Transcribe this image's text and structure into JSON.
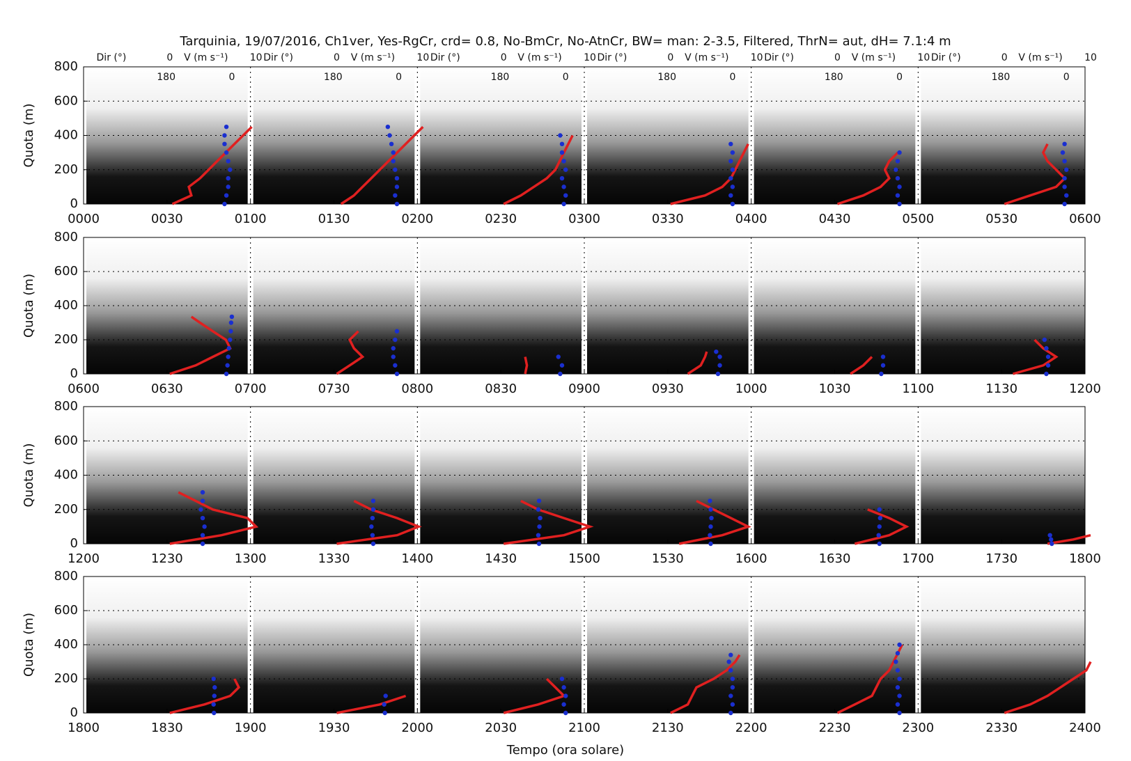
{
  "chart_data": {
    "type": "sodar-profile",
    "title": "Tarquinia, 19/07/2016, Ch1ver, Yes-RgCr, crd= 0.8, No-BmCr, No-AtnCr, BW= man: 2-3.5, Filtered, ThrN= aut,  dH= 7.1:4 m",
    "x_label": "Tempo (ora solare)",
    "profile_axes": {
      "dir_label": "Dir (°)",
      "speed_label": "V (m s⁻¹)",
      "speed_ticks": [
        0,
        10
      ],
      "dir_ticks": [
        180,
        0
      ],
      "speed_color": "#e02020",
      "dir_color": "#1a2fd0"
    },
    "panels": [
      {
        "y_label": "Quota (m)",
        "ylim": [
          0,
          800
        ],
        "yticks": [
          0,
          200,
          400,
          600,
          800
        ],
        "grid": true,
        "xlim": [
          0,
          360
        ],
        "xticks": [
          {
            "value": 0,
            "label": "0000"
          },
          {
            "value": 30,
            "label": "0030"
          },
          {
            "value": 60,
            "label": "0100"
          },
          {
            "value": 90,
            "label": "0130"
          },
          {
            "value": 120,
            "label": "0200"
          },
          {
            "value": 150,
            "label": "0230"
          },
          {
            "value": 180,
            "label": "0300"
          },
          {
            "value": 210,
            "label": "0330"
          },
          {
            "value": 240,
            "label": "0400"
          },
          {
            "value": 270,
            "label": "0430"
          },
          {
            "value": 300,
            "label": "0500"
          },
          {
            "value": 330,
            "label": "0530"
          },
          {
            "value": 360,
            "label": "0600"
          }
        ],
        "profiles": [
          {
            "time": 0,
            "heights": [
              0,
              50,
              100,
              150,
              200,
              250,
              300,
              350,
              400,
              450
            ],
            "speed": [
              0.3,
              2.5,
              2.2,
              3.5,
              4.5,
              5.5,
              6.5,
              7.5,
              8.5,
              9.5
            ],
            "dir": [
              20,
              15,
              10,
              10,
              5,
              10,
              15,
              20,
              20,
              15
            ]
          },
          {
            "time": 60,
            "heights": [
              0,
              50,
              100,
              150,
              200,
              250,
              300,
              350,
              400,
              450
            ],
            "speed": [
              0.5,
              2,
              3,
              4,
              5,
              6,
              7,
              8,
              9,
              10
            ],
            "dir": [
              5,
              10,
              5,
              5,
              10,
              15,
              15,
              20,
              25,
              30
            ]
          },
          {
            "time": 120,
            "heights": [
              0,
              50,
              100,
              150,
              200,
              250,
              300,
              350,
              400
            ],
            "speed": [
              0,
              2,
              3.5,
              5,
              6,
              6.5,
              7,
              7.5,
              8
            ],
            "dir": [
              5,
              0,
              5,
              10,
              0,
              5,
              10,
              10,
              15
            ]
          },
          {
            "time": 180,
            "heights": [
              0,
              50,
              100,
              150,
              200,
              250,
              300,
              350
            ],
            "speed": [
              0,
              4,
              6,
              7,
              7.5,
              8,
              8.5,
              9
            ],
            "dir": [
              0,
              5,
              0,
              5,
              0,
              5,
              0,
              5
            ]
          },
          {
            "time": 240,
            "heights": [
              0,
              50,
              100,
              150,
              200,
              250,
              300
            ],
            "speed": [
              0,
              3,
              5,
              6,
              5.5,
              6,
              7
            ],
            "dir": [
              0,
              5,
              0,
              5,
              10,
              5,
              0
            ]
          },
          {
            "time": 300,
            "heights": [
              0,
              50,
              100,
              150,
              200,
              250,
              300,
              350
            ],
            "speed": [
              0,
              3,
              6,
              7,
              6,
              5,
              4.5,
              5
            ],
            "dir": [
              5,
              0,
              5,
              5,
              0,
              5,
              10,
              5
            ]
          }
        ]
      },
      {
        "y_label": "Quota (m)",
        "ylim": [
          0,
          800
        ],
        "yticks": [
          0,
          200,
          400,
          600,
          800
        ],
        "grid": true,
        "xlim": [
          360,
          720
        ],
        "xticks": [
          {
            "value": 360,
            "label": "0600"
          },
          {
            "value": 390,
            "label": "0630"
          },
          {
            "value": 420,
            "label": "0700"
          },
          {
            "value": 450,
            "label": "0730"
          },
          {
            "value": 480,
            "label": "0800"
          },
          {
            "value": 510,
            "label": "0830"
          },
          {
            "value": 540,
            "label": "0900"
          },
          {
            "value": 570,
            "label": "0930"
          },
          {
            "value": 600,
            "label": "1000"
          },
          {
            "value": 630,
            "label": "1030"
          },
          {
            "value": 660,
            "label": "1100"
          },
          {
            "value": 690,
            "label": "1130"
          },
          {
            "value": 720,
            "label": "1200"
          }
        ],
        "profiles": [
          {
            "time": 360,
            "heights": [
              0,
              50,
              100,
              150,
              200,
              250,
              300,
              335
            ],
            "speed": [
              0,
              3,
              5,
              7,
              6.5,
              5,
              3.5,
              2.5
            ],
            "dir": [
              15,
              12,
              10,
              8,
              5,
              3,
              2,
              0
            ]
          },
          {
            "time": 420,
            "heights": [
              0,
              50,
              100,
              150,
              200,
              250
            ],
            "speed": [
              0,
              1.5,
              3,
              2,
              1.5,
              2.5
            ],
            "dir": [
              5,
              10,
              15,
              15,
              10,
              5
            ]
          },
          {
            "time": 480,
            "heights": [
              0,
              50,
              100
            ],
            "speed": [
              2.5,
              2.7,
              2.5
            ],
            "dir": [
              15,
              10,
              20
            ]
          },
          {
            "time": 540,
            "heights": [
              0,
              50,
              100,
              130
            ],
            "speed": [
              2,
              3.5,
              4,
              4.2
            ],
            "dir": [
              40,
              35,
              35,
              45
            ]
          },
          {
            "time": 600,
            "heights": [
              0,
              50,
              100
            ],
            "speed": [
              1.5,
              3,
              4
            ],
            "dir": [
              50,
              45,
              45
            ]
          },
          {
            "time": 660,
            "heights": [
              0,
              50,
              100,
              150,
              200
            ],
            "speed": [
              1,
              4.5,
              6,
              4.5,
              3.5
            ],
            "dir": [
              55,
              50,
              50,
              55,
              60
            ]
          }
        ]
      },
      {
        "y_label": "Quota (m)",
        "ylim": [
          0,
          800
        ],
        "yticks": [
          0,
          200,
          400,
          600,
          800
        ],
        "grid": true,
        "xlim": [
          720,
          1080
        ],
        "xticks": [
          {
            "value": 720,
            "label": "1200"
          },
          {
            "value": 750,
            "label": "1230"
          },
          {
            "value": 780,
            "label": "1300"
          },
          {
            "value": 810,
            "label": "1330"
          },
          {
            "value": 840,
            "label": "1400"
          },
          {
            "value": 870,
            "label": "1430"
          },
          {
            "value": 900,
            "label": "1500"
          },
          {
            "value": 930,
            "label": "1530"
          },
          {
            "value": 960,
            "label": "1600"
          },
          {
            "value": 990,
            "label": "1630"
          },
          {
            "value": 1020,
            "label": "1700"
          },
          {
            "value": 1050,
            "label": "1730"
          },
          {
            "value": 1080,
            "label": "1800"
          }
        ],
        "profiles": [
          {
            "time": 720,
            "heights": [
              0,
              50,
              100,
              150,
              200,
              250,
              300
            ],
            "speed": [
              0,
              6,
              10,
              9,
              5,
              3,
              1
            ],
            "dir": [
              80,
              80,
              75,
              80,
              85,
              80,
              80
            ]
          },
          {
            "time": 780,
            "heights": [
              0,
              50,
              100,
              150,
              200,
              250
            ],
            "speed": [
              0,
              7,
              9.5,
              7,
              4,
              2
            ],
            "dir": [
              70,
              72,
              75,
              72,
              70,
              70
            ]
          },
          {
            "time": 840,
            "heights": [
              0,
              50,
              100,
              150,
              200,
              250
            ],
            "speed": [
              0,
              7,
              10,
              7,
              4,
              2
            ],
            "dir": [
              73,
              75,
              72,
              70,
              75,
              73
            ]
          },
          {
            "time": 900,
            "heights": [
              0,
              50,
              100,
              150,
              200,
              250
            ],
            "speed": [
              1,
              6,
              9,
              7,
              5,
              3
            ],
            "dir": [
              60,
              62,
              60,
              58,
              60,
              62
            ]
          },
          {
            "time": 960,
            "heights": [
              0,
              50,
              100,
              150,
              200
            ],
            "speed": [
              2,
              6,
              8,
              6,
              3.5
            ],
            "dir": [
              55,
              57,
              55,
              53,
              55
            ]
          },
          {
            "time": 1020,
            "heights": [
              0,
              25,
              50
            ],
            "speed": [
              5,
              8,
              10
            ],
            "dir": [
              40,
              42,
              45
            ]
          }
        ]
      },
      {
        "y_label": "Quota (m)",
        "ylim": [
          0,
          800
        ],
        "yticks": [
          0,
          200,
          400,
          600,
          800
        ],
        "grid": true,
        "xlim": [
          1080,
          1440
        ],
        "xticks": [
          {
            "value": 1080,
            "label": "1800"
          },
          {
            "value": 1110,
            "label": "1830"
          },
          {
            "value": 1140,
            "label": "1900"
          },
          {
            "value": 1170,
            "label": "1930"
          },
          {
            "value": 1200,
            "label": "2000"
          },
          {
            "value": 1230,
            "label": "2030"
          },
          {
            "value": 1260,
            "label": "2100"
          },
          {
            "value": 1290,
            "label": "2130"
          },
          {
            "value": 1320,
            "label": "2200"
          },
          {
            "value": 1350,
            "label": "2230"
          },
          {
            "value": 1380,
            "label": "2300"
          },
          {
            "value": 1410,
            "label": "2330"
          },
          {
            "value": 1440,
            "label": "2400"
          }
        ],
        "profiles": [
          {
            "time": 1080,
            "heights": [
              0,
              50,
              100,
              150,
              200
            ],
            "speed": [
              0,
              4,
              7,
              8,
              7.5
            ],
            "dir": [
              49,
              50,
              48,
              47,
              50
            ]
          },
          {
            "time": 1140,
            "heights": [
              0,
              50,
              100
            ],
            "speed": [
              0,
              5,
              8
            ],
            "dir": [
              38,
              40,
              36
            ]
          },
          {
            "time": 1200,
            "heights": [
              0,
              50,
              100,
              150,
              200
            ],
            "speed": [
              0,
              4,
              7,
              6,
              5
            ],
            "dir": [
              0,
              5,
              0,
              5,
              10
            ]
          },
          {
            "time": 1260,
            "heights": [
              0,
              50,
              100,
              150,
              200,
              250,
              300,
              340
            ],
            "speed": [
              0,
              2,
              2.5,
              3,
              5,
              6.5,
              7.5,
              8
            ],
            "dir": [
              5,
              0,
              5,
              0,
              0,
              5,
              10,
              5
            ]
          },
          {
            "time": 1320,
            "heights": [
              0,
              50,
              100,
              150,
              200,
              250,
              300,
              350,
              400
            ],
            "speed": [
              0,
              2,
              4,
              4.5,
              5,
              6,
              6.5,
              7,
              7.5
            ],
            "dir": [
              0,
              5,
              0,
              5,
              0,
              5,
              10,
              5,
              0
            ]
          },
          {
            "time": 1380,
            "heights": [
              0,
              50,
              100,
              150,
              200,
              250,
              300
            ],
            "speed": [
              0,
              3,
              5,
              6.5,
              8,
              9.5,
              10
            ]
          }
        ]
      }
    ]
  }
}
